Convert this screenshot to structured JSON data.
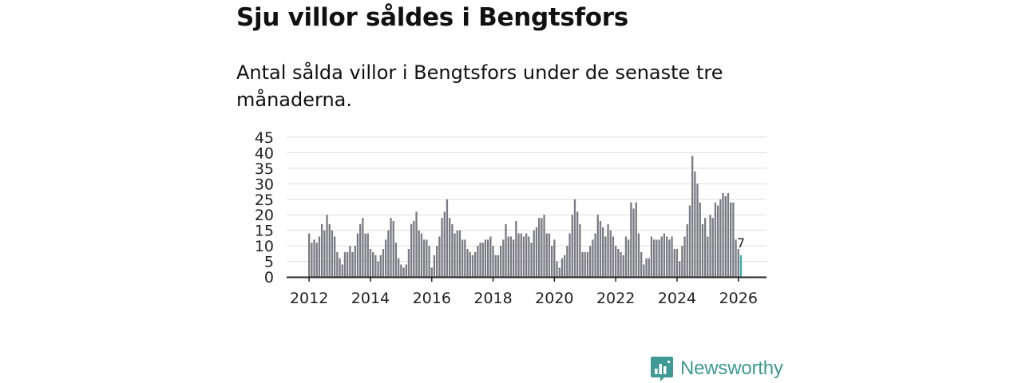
{
  "title": "Sju villor såldes i Bengtsfors",
  "subtitle": "Antal sålda villor i Bengtsfors under de senaste tre månaderna.",
  "brand": {
    "name": "Newsworthy",
    "color": "#3d9a94"
  },
  "colors": {
    "bar": "#7a7a82",
    "highlight": "#3aaea7",
    "grid": "#dddddd",
    "axis": "#222222"
  },
  "chart_data": {
    "type": "bar",
    "title": "Sju villor såldes i Bengtsfors",
    "subtitle": "Antal sålda villor i Bengtsfors under de senaste tre månaderna.",
    "xlabel": "",
    "ylabel": "",
    "ylim": [
      0,
      45
    ],
    "yticks": [
      0,
      5,
      10,
      15,
      20,
      25,
      30,
      35,
      40,
      45
    ],
    "x_start": "2012-01",
    "xticks": [
      "2012",
      "2014",
      "2016",
      "2018",
      "2020",
      "2022",
      "2024",
      "2026"
    ],
    "grid": true,
    "values": [
      14,
      11,
      12,
      11,
      13,
      17,
      15,
      20,
      17,
      15,
      13,
      8,
      6,
      4,
      8,
      8,
      10,
      8,
      10,
      14,
      17,
      19,
      14,
      14,
      9,
      8,
      7,
      5,
      7,
      9,
      12,
      15,
      19,
      18,
      11,
      6,
      4,
      3,
      4,
      9,
      17,
      18,
      21,
      15,
      14,
      12,
      12,
      10,
      3,
      7,
      10,
      13,
      19,
      21,
      25,
      19,
      17,
      14,
      15,
      15,
      12,
      12,
      9,
      8,
      7,
      8,
      10,
      11,
      11,
      12,
      12,
      13,
      10,
      7,
      7,
      10,
      12,
      17,
      13,
      13,
      12,
      18,
      14,
      14,
      13,
      14,
      13,
      11,
      15,
      16,
      19,
      19,
      20,
      14,
      14,
      10,
      12,
      5,
      3,
      6,
      7,
      10,
      14,
      20,
      25,
      21,
      17,
      8,
      8,
      8,
      10,
      12,
      14,
      20,
      18,
      16,
      13,
      17,
      15,
      13,
      10,
      9,
      8,
      7,
      13,
      12,
      24,
      22,
      24,
      14,
      8,
      4,
      6,
      6,
      13,
      12,
      12,
      12,
      13,
      14,
      13,
      12,
      13,
      9,
      9,
      5,
      10,
      13,
      17,
      23,
      39,
      34,
      30,
      24,
      17,
      19,
      13,
      20,
      19,
      24,
      23,
      25,
      27,
      26,
      27,
      24,
      24,
      12,
      9,
      7
    ],
    "highlight_last": 1,
    "last_value_label": "7"
  }
}
